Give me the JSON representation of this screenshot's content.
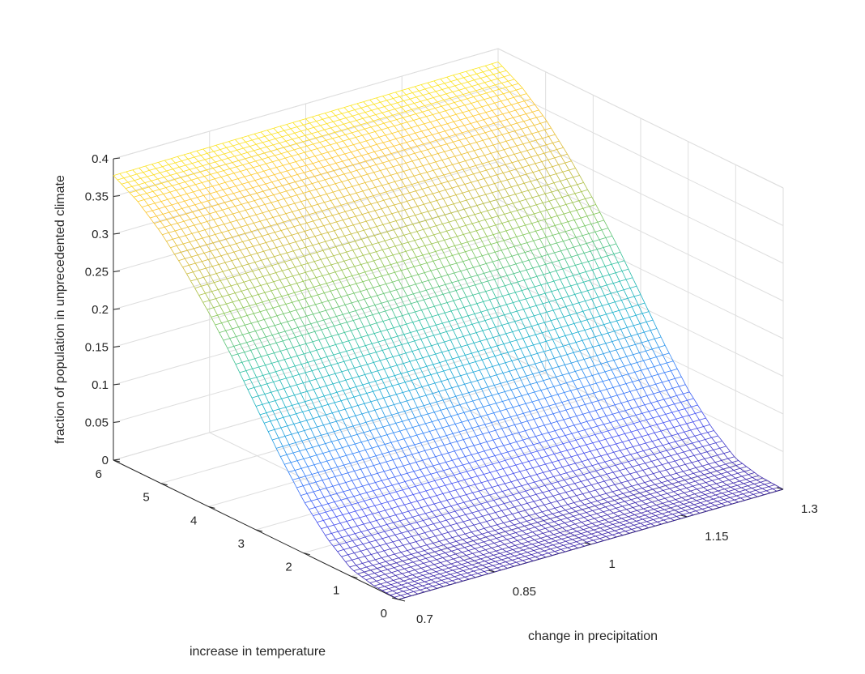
{
  "chart_data": {
    "type": "surface",
    "title": "",
    "xlabel": "change in precipitation",
    "ylabel": "increase in temperature",
    "zlabel": "fraction of population in unprecedented climate",
    "xlim": [
      0.7,
      1.3
    ],
    "ylim": [
      0,
      6
    ],
    "zlim": [
      0,
      0.4
    ],
    "x_ticks": [
      {
        "value": 0.7,
        "label": "0.7"
      },
      {
        "value": 0.85,
        "label": "0.85"
      },
      {
        "value": 1.0,
        "label": "1"
      },
      {
        "value": 1.15,
        "label": "1.15"
      },
      {
        "value": 1.3,
        "label": "1.3"
      }
    ],
    "y_ticks": [
      {
        "value": 0,
        "label": "0"
      },
      {
        "value": 1,
        "label": "1"
      },
      {
        "value": 2,
        "label": "2"
      },
      {
        "value": 3,
        "label": "3"
      },
      {
        "value": 4,
        "label": "4"
      },
      {
        "value": 5,
        "label": "5"
      },
      {
        "value": 6,
        "label": "6"
      }
    ],
    "z_ticks": [
      {
        "value": 0,
        "label": "0"
      },
      {
        "value": 0.05,
        "label": "0.05"
      },
      {
        "value": 0.1,
        "label": "0.1"
      },
      {
        "value": 0.15,
        "label": "0.15"
      },
      {
        "value": 0.2,
        "label": "0.2"
      },
      {
        "value": 0.25,
        "label": "0.25"
      },
      {
        "value": 0.3,
        "label": "0.3"
      },
      {
        "value": 0.35,
        "label": "0.35"
      },
      {
        "value": 0.4,
        "label": "0.4"
      }
    ],
    "surface_profile": {
      "description_of_shape": "value depends mainly on temperature; near zero below ~1, rises steadily, saturates near 0.38 at 6",
      "temperature": [
        0,
        0.5,
        1.0,
        1.5,
        2.0,
        2.5,
        3.0,
        3.5,
        4.0,
        4.5,
        5.0,
        5.5,
        6.0
      ],
      "fraction": [
        0.0,
        0.002,
        0.01,
        0.035,
        0.07,
        0.115,
        0.165,
        0.215,
        0.26,
        0.3,
        0.335,
        0.362,
        0.38
      ]
    },
    "colormap": [
      "#3e26a8",
      "#4250f4",
      "#2f84f9",
      "#14adcf",
      "#2ec09f",
      "#82c655",
      "#d2b937",
      "#fdc42e",
      "#f9fb15"
    ],
    "grid": true
  }
}
